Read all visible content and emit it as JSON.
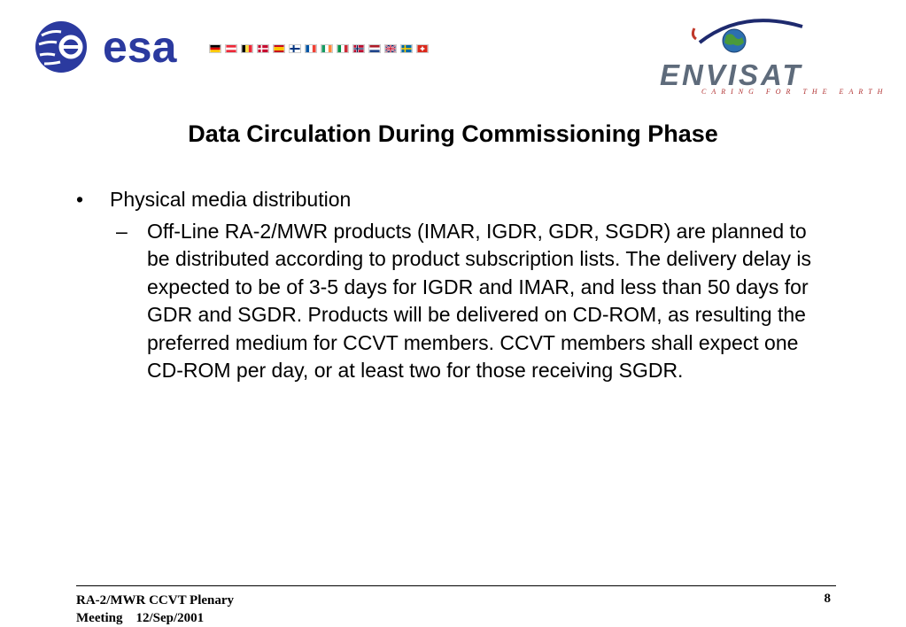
{
  "header": {
    "esa_logo_text": "esa",
    "envisat_logo_text": "ENVISAT",
    "envisat_tagline": "CARING FOR THE EARTH",
    "flags": [
      "germany",
      "austria",
      "belgium",
      "denmark",
      "spain",
      "finland",
      "france",
      "ireland",
      "italy",
      "norway",
      "netherlands",
      "united-kingdom",
      "sweden",
      "switzerland"
    ]
  },
  "slide": {
    "title": "Data Circulation During Commissioning Phase",
    "bullet_mark": "•",
    "bullet_text": "Physical media distribution",
    "sub_mark": "–",
    "sub_text": "Off-Line RA-2/MWR products (IMAR, IGDR, GDR, SGDR) are planned to be distributed according to product subscription lists. The delivery delay is expected to be of 3-5 days for IGDR and IMAR, and less than 50 days for GDR and SGDR. Products will be delivered on CD-ROM, as resulting the preferred medium for CCVT members. CCVT members shall expect one CD-ROM per day, or at least two for those receiving SGDR."
  },
  "footer": {
    "left_line1": "RA-2/MWR CCVT Plenary",
    "left_line2": "Meeting    12/Sep/2001",
    "page_number": "8"
  }
}
